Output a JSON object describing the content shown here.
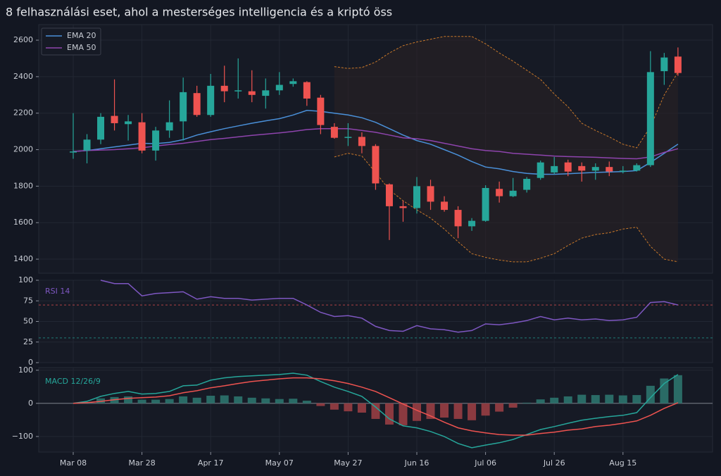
{
  "chart_data": [
    {
      "type": "candlestick",
      "title": "8 felhasználási eset, ahol a mesterséges intelligencia és a kriptó öss",
      "open": [
        1985,
        1995,
        2055,
        2185,
        2140,
        2150,
        1995,
        2105,
        2155,
        2310,
        2190,
        2350,
        2320,
        2320,
        2295,
        2325,
        2360,
        2370,
        2285,
        2125,
        2065,
        2070,
        2020,
        1810,
        1690,
        1680,
        1800,
        1715,
        1670,
        1580,
        1610,
        1785,
        1745,
        1780,
        1845,
        1875,
        1930,
        1910,
        1885,
        1905,
        1880,
        1885,
        1915,
        2430,
        2510
      ],
      "high": [
        2200,
        2085,
        2200,
        2385,
        2190,
        2200,
        2125,
        2270,
        2395,
        2350,
        2415,
        2460,
        2500,
        2435,
        2390,
        2425,
        2390,
        2375,
        2300,
        2145,
        2145,
        2095,
        2030,
        1815,
        1720,
        1850,
        1835,
        1745,
        1690,
        1625,
        1805,
        1825,
        1845,
        1850,
        1940,
        1960,
        1945,
        1930,
        1925,
        1935,
        1910,
        1925,
        2540,
        2530,
        2560
      ],
      "low": [
        1950,
        1925,
        2030,
        2105,
        2050,
        1980,
        1940,
        2065,
        2050,
        2180,
        2180,
        2260,
        2280,
        2260,
        2225,
        2300,
        2345,
        2240,
        2085,
        2060,
        2020,
        1980,
        1780,
        1505,
        1605,
        1650,
        1670,
        1660,
        1515,
        1555,
        1605,
        1710,
        1740,
        1765,
        1835,
        1865,
        1855,
        1825,
        1835,
        1855,
        1870,
        1880,
        1905,
        2355,
        2405
      ],
      "close": [
        1990,
        2055,
        2180,
        2145,
        2155,
        1995,
        2105,
        2150,
        2315,
        2190,
        2350,
        2320,
        2325,
        2300,
        2325,
        2355,
        2375,
        2280,
        2135,
        2065,
        2070,
        2020,
        1815,
        1690,
        1680,
        1800,
        1715,
        1670,
        1580,
        1610,
        1790,
        1745,
        1775,
        1840,
        1930,
        1910,
        1880,
        1885,
        1905,
        1880,
        1885,
        1915,
        2425,
        2505,
        2420
      ],
      "up_color": "#26a69a",
      "down_color": "#ef5350",
      "series": [
        {
          "name": "EMA 20",
          "color": "#4a90d9",
          "values": [
            1990,
            1995,
            2005,
            2015,
            2025,
            2035,
            2033,
            2040,
            2055,
            2080,
            2098,
            2115,
            2130,
            2145,
            2158,
            2170,
            2190,
            2215,
            2210,
            2200,
            2190,
            2175,
            2150,
            2115,
            2080,
            2050,
            2030,
            2000,
            1970,
            1935,
            1905,
            1895,
            1880,
            1870,
            1865,
            1865,
            1868,
            1872,
            1875,
            1878,
            1880,
            1885,
            1930,
            1980,
            2030
          ]
        },
        {
          "name": "EMA 50",
          "color": "#8e44ad",
          "values": [
            1990,
            1995,
            1998,
            2000,
            2005,
            2010,
            2020,
            2028,
            2035,
            2045,
            2055,
            2062,
            2070,
            2078,
            2085,
            2092,
            2100,
            2110,
            2115,
            2115,
            2115,
            2105,
            2095,
            2080,
            2065,
            2060,
            2050,
            2035,
            2020,
            2005,
            1995,
            1990,
            1980,
            1975,
            1970,
            1965,
            1962,
            1960,
            1958,
            1955,
            1952,
            1950,
            1960,
            1985,
            2005
          ]
        }
      ],
      "bands": {
        "color": "#c8782a",
        "upper": [
          null,
          null,
          null,
          null,
          null,
          null,
          null,
          null,
          null,
          null,
          null,
          null,
          null,
          null,
          null,
          null,
          null,
          null,
          null,
          2455,
          2445,
          2450,
          2480,
          2530,
          2570,
          2590,
          2605,
          2620,
          2620,
          2620,
          2580,
          2530,
          2485,
          2435,
          2385,
          2305,
          2235,
          2145,
          2105,
          2070,
          2030,
          2010,
          2125,
          2300,
          2425
        ],
        "lower": [
          null,
          null,
          null,
          null,
          null,
          null,
          null,
          null,
          null,
          null,
          null,
          null,
          null,
          null,
          null,
          null,
          null,
          null,
          null,
          1960,
          1980,
          1965,
          1875,
          1780,
          1720,
          1670,
          1625,
          1565,
          1495,
          1430,
          1410,
          1395,
          1385,
          1385,
          1405,
          1430,
          1475,
          1515,
          1535,
          1545,
          1565,
          1575,
          1470,
          1400,
          1385
        ]
      },
      "ylim": [
        1323,
        2685
      ],
      "yticks": [
        1400,
        1600,
        1800,
        2000,
        2200,
        2400,
        2600
      ],
      "grid": true,
      "legend": "upper left"
    },
    {
      "type": "line",
      "label": "RSI 14",
      "color": "#7e57c2",
      "values": [
        null,
        null,
        100,
        96,
        96,
        81,
        84,
        85,
        86,
        77,
        80,
        78,
        78,
        76,
        77,
        78,
        78,
        70,
        61,
        56,
        57,
        54,
        44,
        39,
        38,
        45,
        41,
        40,
        37,
        39,
        47,
        46,
        48,
        51,
        56,
        52,
        54,
        52,
        53,
        51,
        52,
        55,
        73,
        74,
        70
      ],
      "thresholds": [
        {
          "value": 70,
          "color": "#ef5350"
        },
        {
          "value": 30,
          "color": "#26a69a"
        }
      ],
      "ylim": [
        0,
        100
      ],
      "yticks": [
        0,
        25,
        50,
        75,
        100
      ],
      "grid": true
    },
    {
      "type": "macd",
      "label": "MACD 12/26/9",
      "categories": [
        "Mar 08",
        null,
        null,
        null,
        null,
        "Mar 28",
        null,
        null,
        null,
        null,
        "Apr 17",
        null,
        null,
        null,
        null,
        "May 07",
        null,
        null,
        null,
        null,
        "May 27",
        null,
        null,
        null,
        null,
        "Jun 16",
        null,
        null,
        null,
        null,
        "Jul 06",
        null,
        null,
        null,
        null,
        "Jul 26",
        null,
        null,
        null,
        null,
        "Aug 15",
        null,
        null,
        null,
        null
      ],
      "series": [
        {
          "color": "#26a69a",
          "values": [
            0,
            6,
            21,
            30,
            36,
            28,
            30,
            36,
            53,
            55,
            70,
            77,
            81,
            83,
            85,
            87,
            91,
            85,
            66,
            49,
            36,
            21,
            -11,
            -47,
            -68,
            -74,
            -85,
            -100,
            -121,
            -134,
            -126,
            -119,
            -109,
            -94,
            -79,
            -70,
            -60,
            -51,
            -45,
            -40,
            -36,
            -28,
            17,
            60,
            87
          ]
        },
        {
          "color": "#ef5350",
          "values": [
            0,
            2,
            6,
            11,
            15,
            17,
            19,
            23,
            32,
            38,
            47,
            53,
            60,
            66,
            70,
            74,
            77,
            77,
            74,
            68,
            60,
            49,
            36,
            17,
            -2,
            -21,
            -38,
            -57,
            -74,
            -83,
            -89,
            -94,
            -96,
            -96,
            -91,
            -87,
            -81,
            -77,
            -70,
            -66,
            -60,
            -53,
            -36,
            -15,
            2
          ]
        }
      ],
      "histogram": {
        "up_color": "#2a6b66",
        "down_color": "#8b3a40",
        "values": [
          0,
          4,
          15,
          19,
          21,
          11,
          11,
          13,
          21,
          17,
          23,
          24,
          21,
          17,
          15,
          13,
          14,
          8,
          -8,
          -19,
          -24,
          -28,
          -47,
          -64,
          -66,
          -53,
          -47,
          -43,
          -47,
          -51,
          -37,
          -25,
          -13,
          2,
          12,
          17,
          21,
          26,
          25,
          26,
          24,
          25,
          53,
          75,
          85
        ]
      },
      "ylim": [
        -147,
        108
      ],
      "yticks": [
        {
          "value": -100,
          "label": "−100"
        },
        0,
        100
      ],
      "grid": true
    }
  ]
}
